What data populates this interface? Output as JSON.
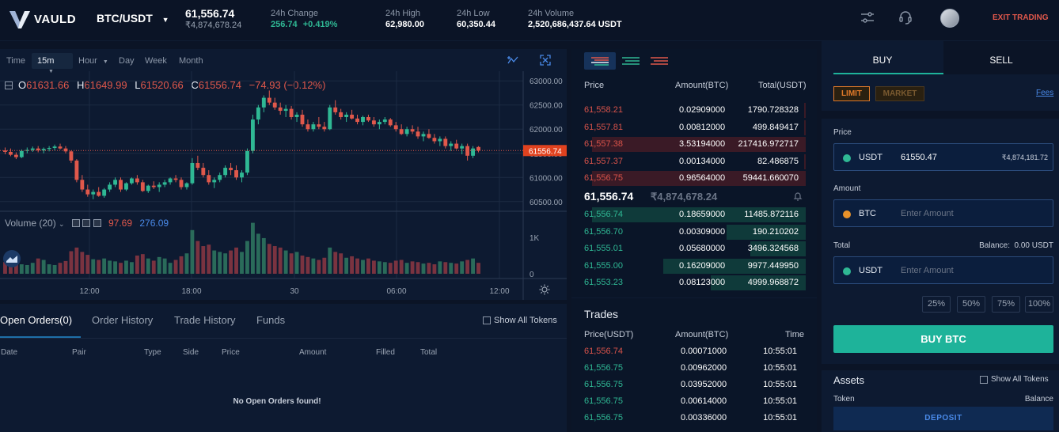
{
  "brand": {
    "name": "VAULD"
  },
  "header": {
    "pair": "BTC/USDT",
    "last_price": "61,556.74",
    "last_price_inr": "₹4,874,678.24",
    "change_label": "24h Change",
    "change_value": "256.74",
    "change_pct": "+0.419%",
    "high_label": "24h High",
    "high_value": "62,980.00",
    "low_label": "24h Low",
    "low_value": "60,350.44",
    "volume_label": "24h Volume",
    "volume_value": "2,520,686,437.64 USDT",
    "exit_label": "EXIT TRADING"
  },
  "chart_toolbar": {
    "time": "Time",
    "m15": "15m",
    "hour": "Hour",
    "day": "Day",
    "week": "Week",
    "month": "Month"
  },
  "ohlc": {
    "o_label": "O",
    "o": "61631.66",
    "h_label": "H",
    "h": "61649.99",
    "l_label": "L",
    "l": "61520.66",
    "c_label": "C",
    "c": "61556.74",
    "change": "−74.93 (−0.12%)"
  },
  "volume_legend": {
    "label": "Volume (20)",
    "v1": "97.69",
    "v2": "276.09"
  },
  "chart_data": {
    "type": "candlestick",
    "price_axis": [
      "63000.00",
      "62500.00",
      "62000.00",
      "61500.00",
      "61000.00",
      "60500.00"
    ],
    "ylim": [
      60300,
      63200
    ],
    "current_price": "61556.74",
    "volume_axis": [
      "1K",
      "0"
    ],
    "time_axis": [
      "12:00",
      "18:00",
      "30",
      "06:00",
      "12:00"
    ],
    "candles": [
      [
        61560,
        61620,
        61480,
        61530
      ],
      [
        61530,
        61600,
        61440,
        61470
      ],
      [
        61470,
        61520,
        61380,
        61420
      ],
      [
        61420,
        61580,
        61400,
        61550
      ],
      [
        61550,
        61620,
        61500,
        61570
      ],
      [
        61570,
        61640,
        61530,
        61600
      ],
      [
        61600,
        61650,
        61520,
        61560
      ],
      [
        61560,
        61620,
        61500,
        61590
      ],
      [
        61590,
        61650,
        61540,
        61610
      ],
      [
        61610,
        61680,
        61560,
        61640
      ],
      [
        61640,
        61700,
        61580,
        61600
      ],
      [
        61600,
        61650,
        61500,
        61540
      ],
      [
        61540,
        61560,
        61300,
        61350
      ],
      [
        61350,
        61380,
        60900,
        60950
      ],
      [
        60950,
        61050,
        60700,
        60750
      ],
      [
        60750,
        60850,
        60600,
        60650
      ],
      [
        60650,
        60750,
        60550,
        60700
      ],
      [
        60700,
        60800,
        60600,
        60620
      ],
      [
        60620,
        60780,
        60580,
        60750
      ],
      [
        60750,
        60900,
        60700,
        60850
      ],
      [
        60850,
        61000,
        60800,
        60950
      ],
      [
        60950,
        61000,
        60700,
        60750
      ],
      [
        60750,
        60900,
        60720,
        60880
      ],
      [
        60880,
        61000,
        60850,
        60980
      ],
      [
        60980,
        61050,
        60850,
        60900
      ],
      [
        60900,
        60950,
        60700,
        60720
      ],
      [
        60720,
        60850,
        60680,
        60830
      ],
      [
        60830,
        60920,
        60760,
        60800
      ],
      [
        60800,
        60900,
        60700,
        60850
      ],
      [
        60850,
        60950,
        60800,
        60900
      ],
      [
        60900,
        61000,
        60850,
        60980
      ],
      [
        60980,
        61050,
        60900,
        60950
      ],
      [
        60950,
        61000,
        60750,
        60800
      ],
      [
        60800,
        60900,
        60750,
        60880
      ],
      [
        60880,
        61400,
        60850,
        61300
      ],
      [
        61300,
        61450,
        61150,
        61200
      ],
      [
        61200,
        61300,
        61000,
        61050
      ],
      [
        61050,
        61150,
        60850,
        60900
      ],
      [
        60900,
        61000,
        60780,
        60950
      ],
      [
        60950,
        61100,
        60900,
        61050
      ],
      [
        61050,
        61250,
        61000,
        61200
      ],
      [
        61200,
        61300,
        61050,
        61150
      ],
      [
        61150,
        61250,
        60950,
        61000
      ],
      [
        61000,
        61150,
        60900,
        61100
      ],
      [
        61100,
        61600,
        61050,
        61550
      ],
      [
        61550,
        62300,
        61500,
        62200
      ],
      [
        62200,
        62500,
        62100,
        62450
      ],
      [
        62450,
        62700,
        62350,
        62650
      ],
      [
        62650,
        62800,
        62500,
        62550
      ],
      [
        62550,
        62650,
        62400,
        62450
      ],
      [
        62450,
        62550,
        62300,
        62380
      ],
      [
        62380,
        62500,
        62250,
        62420
      ],
      [
        62420,
        62480,
        62200,
        62250
      ],
      [
        62250,
        62350,
        62150,
        62300
      ],
      [
        62300,
        62400,
        62050,
        62100
      ],
      [
        62100,
        62200,
        61950,
        62000
      ],
      [
        62000,
        62150,
        61950,
        62100
      ],
      [
        62100,
        62250,
        62000,
        62050
      ],
      [
        62050,
        62150,
        61950,
        62000
      ],
      [
        62000,
        62500,
        61980,
        62450
      ],
      [
        62450,
        62600,
        62300,
        62350
      ],
      [
        62350,
        62420,
        62200,
        62250
      ],
      [
        62250,
        62350,
        62150,
        62300
      ],
      [
        62300,
        62400,
        62200,
        62220
      ],
      [
        62220,
        62300,
        62100,
        62150
      ],
      [
        62150,
        62280,
        62080,
        62250
      ],
      [
        62250,
        62300,
        62150,
        62180
      ],
      [
        62180,
        62250,
        62050,
        62100
      ],
      [
        62100,
        62200,
        62000,
        62150
      ],
      [
        62150,
        62250,
        62100,
        62200
      ],
      [
        62200,
        62230,
        62050,
        62080
      ],
      [
        62080,
        62150,
        61950,
        62000
      ],
      [
        62000,
        62100,
        61880,
        61900
      ],
      [
        61900,
        62050,
        61850,
        62000
      ],
      [
        62000,
        62080,
        61900,
        61950
      ],
      [
        61950,
        62050,
        61800,
        61850
      ],
      [
        61850,
        61950,
        61750,
        61900
      ],
      [
        61900,
        62000,
        61800,
        61820
      ],
      [
        61820,
        61900,
        61700,
        61750
      ],
      [
        61750,
        61850,
        61650,
        61800
      ],
      [
        61800,
        61850,
        61600,
        61650
      ],
      [
        61650,
        61750,
        61550,
        61700
      ],
      [
        61700,
        61780,
        61580,
        61600
      ],
      [
        61600,
        61700,
        61480,
        61650
      ],
      [
        61650,
        61700,
        61350,
        61450
      ],
      [
        61450,
        61650,
        61400,
        61600
      ],
      [
        61631,
        61649,
        61520,
        61556
      ]
    ],
    "volumes": [
      320,
      280,
      300,
      260,
      240,
      300,
      420,
      380,
      260,
      240,
      300,
      350,
      620,
      720,
      600,
      520,
      400,
      380,
      420,
      360,
      340,
      300,
      360,
      320,
      500,
      540,
      420,
      360,
      460,
      420,
      300,
      380,
      480,
      560,
      1200,
      900,
      760,
      800,
      640,
      600,
      560,
      640,
      720,
      600,
      900,
      1400,
      1100,
      980,
      820,
      760,
      720,
      640,
      560,
      600,
      500,
      460,
      420,
      380,
      440,
      720,
      600,
      560,
      440,
      480,
      420,
      380,
      420,
      360,
      340,
      320,
      300,
      360,
      380,
      300,
      340,
      320,
      280,
      300,
      260,
      340,
      320,
      300,
      280,
      340,
      380,
      420,
      300
    ]
  },
  "orderbook": {
    "headers": {
      "price": "Price",
      "amount": "Amount(BTC)",
      "total": "Total(USDT)"
    },
    "asks": [
      {
        "price": "61,558.21",
        "amount": "0.02909000",
        "total": "1790.728328"
      },
      {
        "price": "61,557.81",
        "amount": "0.00812000",
        "total": "499.849417"
      },
      {
        "price": "61,557.38",
        "amount": "3.53194000",
        "total": "217416.972717"
      },
      {
        "price": "61,557.37",
        "amount": "0.00134000",
        "total": "82.486875"
      },
      {
        "price": "61,556.75",
        "amount": "0.96564000",
        "total": "59441.660070"
      }
    ],
    "mid_price": "61,556.74",
    "mid_inr": "₹4,874,678.24",
    "bids": [
      {
        "price": "61,556.74",
        "amount": "0.18659000",
        "total": "11485.872116"
      },
      {
        "price": "61,556.70",
        "amount": "0.00309000",
        "total": "190.210202"
      },
      {
        "price": "61,555.01",
        "amount": "0.05680000",
        "total": "3496.324568"
      },
      {
        "price": "61,555.00",
        "amount": "0.16209000",
        "total": "9977.449950"
      },
      {
        "price": "61,553.23",
        "amount": "0.08123000",
        "total": "4999.968872"
      }
    ]
  },
  "trades": {
    "title": "Trades",
    "headers": {
      "price": "Price(USDT)",
      "amount": "Amount(BTC)",
      "time": "Time"
    },
    "rows": [
      {
        "price": "61,556.74",
        "amount": "0.00071000",
        "time": "10:55:01",
        "side": "sell"
      },
      {
        "price": "61,556.75",
        "amount": "0.00962000",
        "time": "10:55:01",
        "side": "buy"
      },
      {
        "price": "61,556.75",
        "amount": "0.03952000",
        "time": "10:55:01",
        "side": "buy"
      },
      {
        "price": "61,556.75",
        "amount": "0.00614000",
        "time": "10:55:01",
        "side": "buy"
      },
      {
        "price": "61,556.75",
        "amount": "0.00336000",
        "time": "10:55:01",
        "side": "buy"
      }
    ]
  },
  "orders": {
    "tabs": [
      "Open Orders(0)",
      "Order History",
      "Trade History",
      "Funds"
    ],
    "show_all": "Show All Tokens",
    "columns": [
      "Date",
      "Pair",
      "Type",
      "Side",
      "Price",
      "Amount",
      "Filled",
      "Total"
    ],
    "empty": "No Open Orders found!"
  },
  "trade_form": {
    "buy_tab": "BUY",
    "sell_tab": "SELL",
    "limit": "LIMIT",
    "market": "MARKET",
    "fees": "Fees",
    "price_label": "Price",
    "price_currency": "USDT",
    "price_value": "61550.47",
    "price_inr": "₹4,874,181.72",
    "amount_label": "Amount",
    "amount_currency": "BTC",
    "amount_placeholder": "Enter Amount",
    "total_label": "Total",
    "balance": "Balance:  0.00 USDT",
    "total_currency": "USDT",
    "total_placeholder": "Enter Amount",
    "pcts": [
      "25%",
      "50%",
      "75%",
      "100%"
    ],
    "buy_button": "BUY BTC"
  },
  "assets": {
    "title": "Assets",
    "show_all": "Show All Tokens",
    "token_col": "Token",
    "balance_col": "Balance",
    "deposit": "DEPOSIT"
  },
  "colors": {
    "up": "#2fb894",
    "down": "#e0584b",
    "accent": "#1eb39a",
    "exit": "#e0584b"
  }
}
